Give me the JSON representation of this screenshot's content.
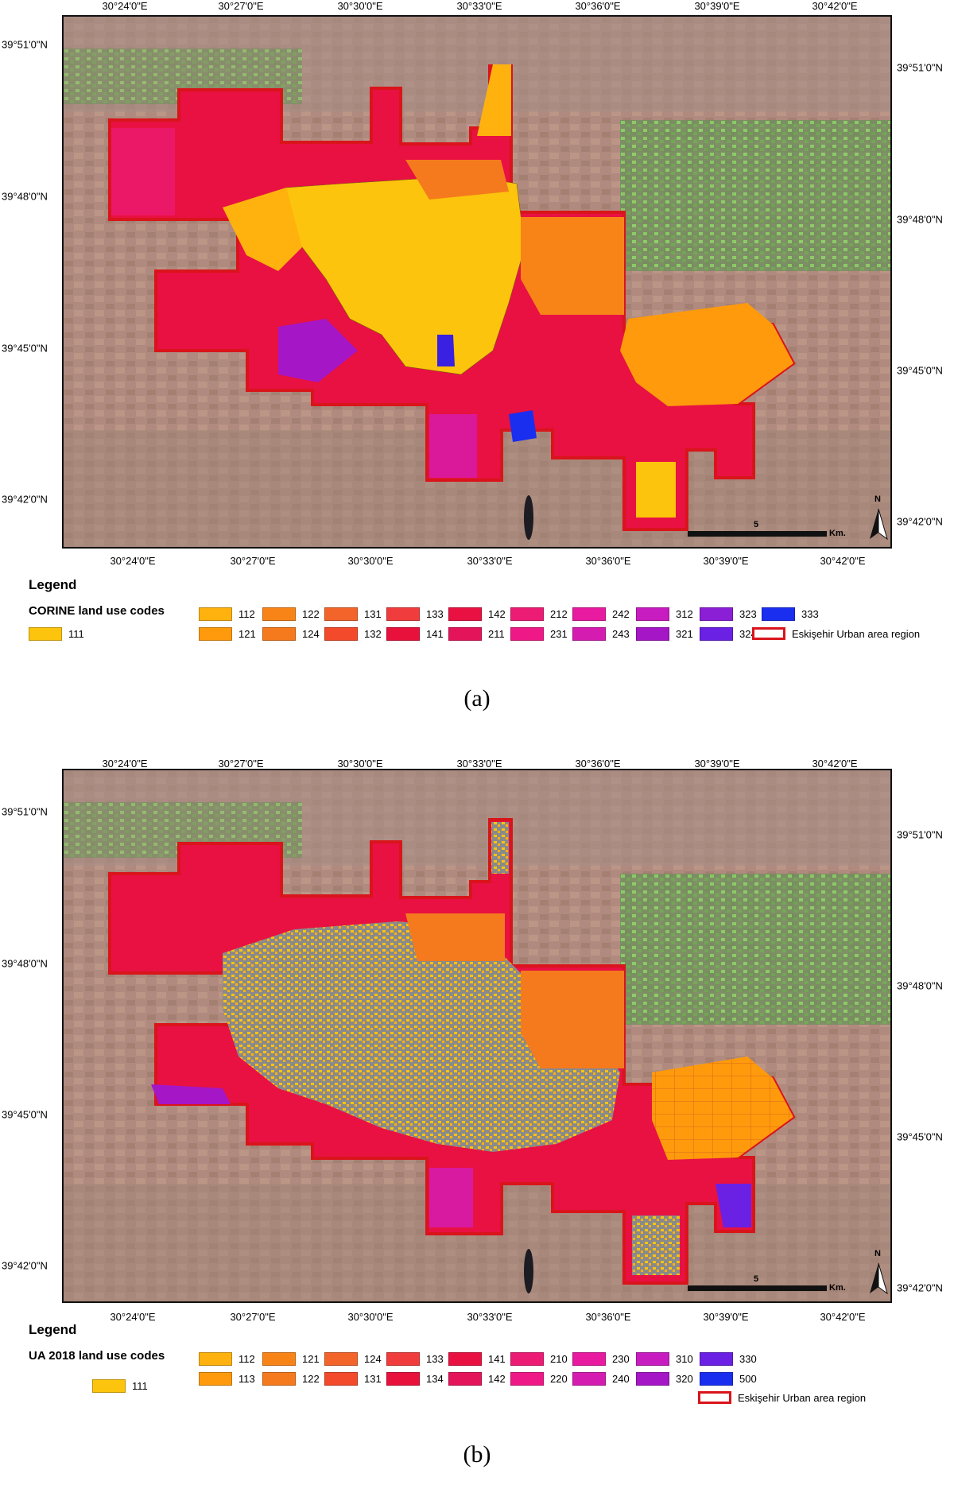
{
  "panel_a": {
    "caption": "(a)",
    "legend_title": "Legend",
    "legend_subtitle": "CORINE land use codes",
    "lon_ticks": [
      "30°24'0\"E",
      "30°27'0\"E",
      "30°30'0\"E",
      "30°33'0\"E",
      "30°36'0\"E",
      "30°39'0\"E",
      "30°42'0\"E"
    ],
    "lat_ticks_left": [
      "39°51'0\"N",
      "39°48'0\"N",
      "39°45'0\"N",
      "39°42'0\"N"
    ],
    "lat_ticks_right": [
      "39°51'0\"N",
      "39°48'0\"N",
      "39°45'0\"N",
      "39°42'0\"N"
    ],
    "scale_label": "5",
    "scale_unit": "Km.",
    "north_label": "N",
    "legend_items": [
      {
        "code": "111",
        "color": "#fcc40c"
      },
      {
        "code": "112",
        "color": "#ffb20e"
      },
      {
        "code": "121",
        "color": "#ff9a0c"
      },
      {
        "code": "122",
        "color": "#f88418"
      },
      {
        "code": "124",
        "color": "#f57a1d"
      },
      {
        "code": "131",
        "color": "#f3642b"
      },
      {
        "code": "132",
        "color": "#f24a2a"
      },
      {
        "code": "133",
        "color": "#f03c3c"
      },
      {
        "code": "141",
        "color": "#e8113b"
      },
      {
        "code": "142",
        "color": "#e81142"
      },
      {
        "code": "211",
        "color": "#e4145a"
      },
      {
        "code": "212",
        "color": "#ec1b74"
      },
      {
        "code": "231",
        "color": "#ef1887"
      },
      {
        "code": "242",
        "color": "#e71aa0"
      },
      {
        "code": "243",
        "color": "#d51cb0"
      },
      {
        "code": "312",
        "color": "#c71cbf"
      },
      {
        "code": "321",
        "color": "#a516c6"
      },
      {
        "code": "323",
        "color": "#8a1fd6"
      },
      {
        "code": "324",
        "color": "#6a21e3"
      },
      {
        "code": "333",
        "color": "#1a2ef0"
      }
    ],
    "region_label": "Eskişehir Urban area region"
  },
  "panel_b": {
    "caption": "(b)",
    "legend_title": "Legend",
    "legend_subtitle": "UA 2018  land use codes",
    "lon_ticks": [
      "30°24'0\"E",
      "30°27'0\"E",
      "30°30'0\"E",
      "30°33'0\"E",
      "30°36'0\"E",
      "30°39'0\"E",
      "30°42'0\"E"
    ],
    "lat_ticks_left": [
      "39°51'0\"N",
      "39°48'0\"N",
      "39°45'0\"N",
      "39°42'0\"N"
    ],
    "lat_ticks_right": [
      "39°51'0\"N",
      "39°48'0\"N",
      "39°45'0\"N",
      "39°42'0\"N"
    ],
    "scale_label": "5",
    "scale_unit": "Km.",
    "north_label": "N",
    "legend_items": [
      {
        "code": "111",
        "color": "#fcc40c"
      },
      {
        "code": "112",
        "color": "#ffb20e"
      },
      {
        "code": "113",
        "color": "#ff9a0c"
      },
      {
        "code": "121",
        "color": "#f88418"
      },
      {
        "code": "122",
        "color": "#f57a1d"
      },
      {
        "code": "124",
        "color": "#f3642b"
      },
      {
        "code": "131",
        "color": "#f24a2a"
      },
      {
        "code": "133",
        "color": "#f03c3c"
      },
      {
        "code": "134",
        "color": "#e8113b"
      },
      {
        "code": "141",
        "color": "#e81142"
      },
      {
        "code": "142",
        "color": "#e4145a"
      },
      {
        "code": "210",
        "color": "#ec1b74"
      },
      {
        "code": "220",
        "color": "#ef1887"
      },
      {
        "code": "230",
        "color": "#e71aa0"
      },
      {
        "code": "240",
        "color": "#d51cb0"
      },
      {
        "code": "310",
        "color": "#c71cbf"
      },
      {
        "code": "320",
        "color": "#a516c6"
      },
      {
        "code": "330",
        "color": "#6a21e3"
      },
      {
        "code": "500",
        "color": "#1a2ef0"
      }
    ],
    "region_label": "Eskişehir Urban area region"
  }
}
